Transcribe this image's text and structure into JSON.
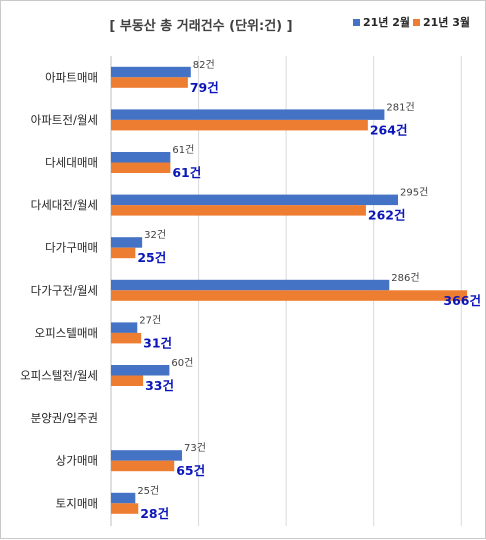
{
  "chart_data": {
    "type": "bar",
    "orientation": "horizontal",
    "title": "[ 부동산 총 거래건수 (단위:건) ]",
    "xlim": [
      0,
      370
    ],
    "grid": true,
    "legend_position": "top-right",
    "unit_suffix": "건",
    "categories": [
      "아파트매매",
      "아파트전/월세",
      "다세대매매",
      "다세대전/월세",
      "다가구매매",
      "다가구전/월세",
      "오피스텔매매",
      "오피스텔전/월세",
      "분양권/입주권",
      "상가매매",
      "토지매매"
    ],
    "series": [
      {
        "name": "21년 2월",
        "color": "#4472c4",
        "values": [
          82,
          281,
          61,
          295,
          32,
          286,
          27,
          60,
          null,
          73,
          25
        ]
      },
      {
        "name": "21년 3월",
        "color": "#ed7d31",
        "values": [
          79,
          264,
          61,
          262,
          25,
          366,
          31,
          33,
          null,
          65,
          28
        ]
      }
    ]
  }
}
